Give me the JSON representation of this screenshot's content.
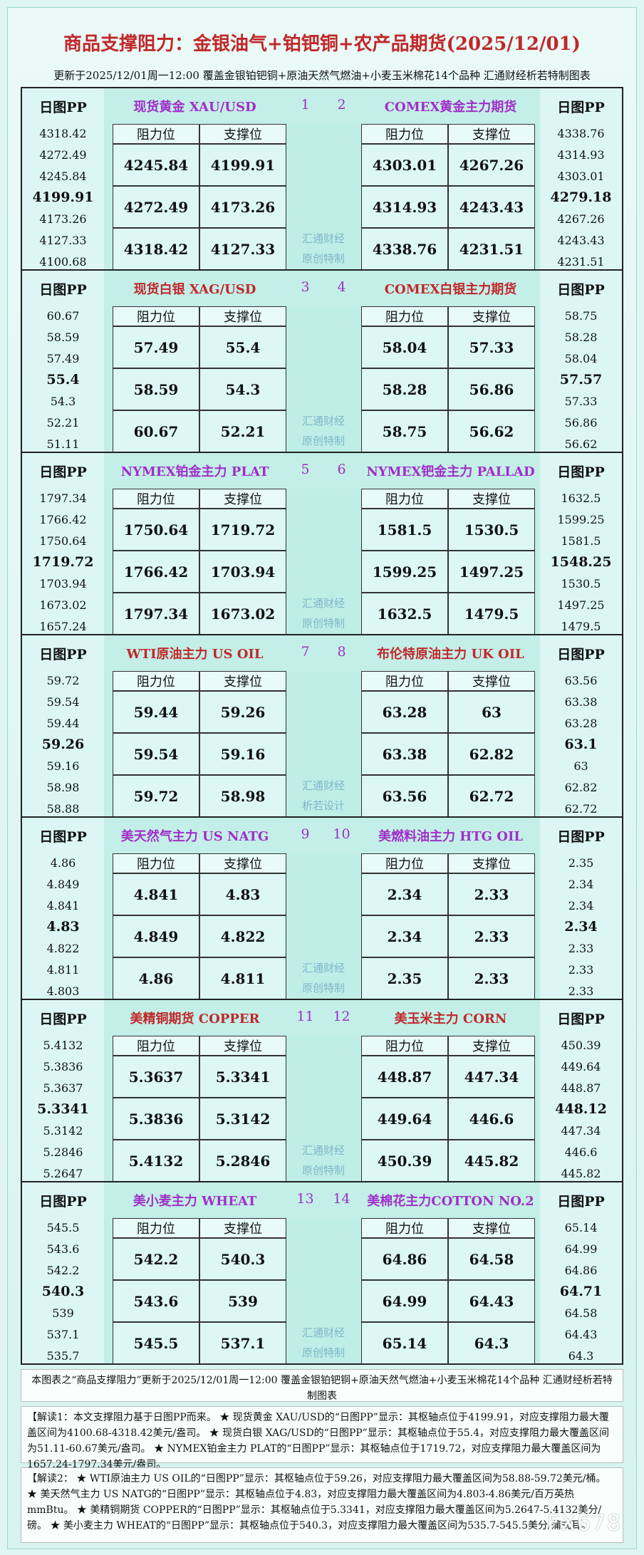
{
  "title": "商品支撑阻力：金银油气+铂钯铜+农产品期货(2025/12/01)",
  "subtitle": "更新于2025/12/01周一12:00 覆盖金银铂钯铜+原油天然气燃油+小麦玉米棉花14个品种 汇通财经析若特制图表",
  "pp_label": "日图PP",
  "col_headers": [
    "阻力位",
    "支撑位"
  ],
  "blocks": [
    {
      "numbers": [
        "1",
        "2"
      ],
      "name_color": "#a02fc8",
      "watermark": [
        "汇通财经",
        "原创特制"
      ],
      "left": {
        "name": "现货黄金 XAU/USD",
        "pp": [
          "4318.42",
          "4272.49",
          "4245.84",
          "4199.91",
          "4173.26",
          "4127.33",
          "4100.68"
        ],
        "rows": [
          [
            "4245.84",
            "4199.91"
          ],
          [
            "4272.49",
            "4173.26"
          ],
          [
            "4318.42",
            "4127.33"
          ]
        ]
      },
      "right": {
        "name": "COMEX黄金主力期货",
        "pp": [
          "4338.76",
          "4314.93",
          "4303.01",
          "4279.18",
          "4267.26",
          "4243.43",
          "4231.51"
        ],
        "rows": [
          [
            "4303.01",
            "4267.26"
          ],
          [
            "4314.93",
            "4243.43"
          ],
          [
            "4338.76",
            "4231.51"
          ]
        ]
      }
    },
    {
      "numbers": [
        "3",
        "4"
      ],
      "name_color": "#c0282a",
      "watermark": [
        "汇通财经",
        "原创特制"
      ],
      "left": {
        "name": "现货白银 XAG/USD",
        "pp": [
          "60.67",
          "58.59",
          "57.49",
          "55.4",
          "54.3",
          "52.21",
          "51.11"
        ],
        "rows": [
          [
            "57.49",
            "55.4"
          ],
          [
            "58.59",
            "54.3"
          ],
          [
            "60.67",
            "52.21"
          ]
        ]
      },
      "right": {
        "name": "COMEX白银主力期货",
        "pp": [
          "58.75",
          "58.28",
          "58.04",
          "57.57",
          "57.33",
          "56.86",
          "56.62"
        ],
        "rows": [
          [
            "58.04",
            "57.33"
          ],
          [
            "58.28",
            "56.86"
          ],
          [
            "58.75",
            "56.62"
          ]
        ]
      }
    },
    {
      "numbers": [
        "5",
        "6"
      ],
      "name_color": "#a02fc8",
      "watermark": [
        "汇通财经",
        "原创特制"
      ],
      "left": {
        "name": "NYMEX铂金主力 PLAT",
        "pp": [
          "1797.34",
          "1766.42",
          "1750.64",
          "1719.72",
          "1703.94",
          "1673.02",
          "1657.24"
        ],
        "rows": [
          [
            "1750.64",
            "1719.72"
          ],
          [
            "1766.42",
            "1703.94"
          ],
          [
            "1797.34",
            "1673.02"
          ]
        ]
      },
      "right": {
        "name": "NYMEX钯金主力 PALLAD",
        "pp": [
          "1632.5",
          "1599.25",
          "1581.5",
          "1548.25",
          "1530.5",
          "1497.25",
          "1479.5"
        ],
        "rows": [
          [
            "1581.5",
            "1530.5"
          ],
          [
            "1599.25",
            "1497.25"
          ],
          [
            "1632.5",
            "1479.5"
          ]
        ]
      }
    },
    {
      "numbers": [
        "7",
        "8"
      ],
      "name_color": "#c0282a",
      "watermark": [
        "汇通财经",
        "析若设计"
      ],
      "left": {
        "name": "WTI原油主力 US OIL",
        "pp": [
          "59.72",
          "59.54",
          "59.44",
          "59.26",
          "59.16",
          "58.98",
          "58.88"
        ],
        "rows": [
          [
            "59.44",
            "59.26"
          ],
          [
            "59.54",
            "59.16"
          ],
          [
            "59.72",
            "58.98"
          ]
        ]
      },
      "right": {
        "name": "布伦特原油主力 UK OIL",
        "pp": [
          "63.56",
          "63.38",
          "63.28",
          "63.1",
          "63",
          "62.82",
          "62.72"
        ],
        "rows": [
          [
            "63.28",
            "63"
          ],
          [
            "63.38",
            "62.82"
          ],
          [
            "63.56",
            "62.72"
          ]
        ]
      }
    },
    {
      "numbers": [
        "9",
        "10"
      ],
      "name_color": "#a02fc8",
      "watermark": [
        "汇通财经",
        "原创特制"
      ],
      "left": {
        "name": "美天然气主力 US NATG",
        "pp": [
          "4.86",
          "4.849",
          "4.841",
          "4.83",
          "4.822",
          "4.811",
          "4.803"
        ],
        "rows": [
          [
            "4.841",
            "4.83"
          ],
          [
            "4.849",
            "4.822"
          ],
          [
            "4.86",
            "4.811"
          ]
        ]
      },
      "right": {
        "name": "美燃料油主力 HTG OIL",
        "pp": [
          "2.35",
          "2.34",
          "2.34",
          "2.34",
          "2.33",
          "2.33",
          "2.33"
        ],
        "rows": [
          [
            "2.34",
            "2.33"
          ],
          [
            "2.34",
            "2.33"
          ],
          [
            "2.35",
            "2.33"
          ]
        ]
      }
    },
    {
      "numbers": [
        "11",
        "12"
      ],
      "name_color": "#c0282a",
      "watermark": [
        "汇通财经",
        "原创特制"
      ],
      "left": {
        "name": "美精铜期货 COPPER",
        "pp": [
          "5.4132",
          "5.3836",
          "5.3637",
          "5.3341",
          "5.3142",
          "5.2846",
          "5.2647"
        ],
        "rows": [
          [
            "5.3637",
            "5.3341"
          ],
          [
            "5.3836",
            "5.3142"
          ],
          [
            "5.4132",
            "5.2846"
          ]
        ]
      },
      "right": {
        "name": "美玉米主力 CORN",
        "pp": [
          "450.39",
          "449.64",
          "448.87",
          "448.12",
          "447.34",
          "446.6",
          "445.82"
        ],
        "rows": [
          [
            "448.87",
            "447.34"
          ],
          [
            "449.64",
            "446.6"
          ],
          [
            "450.39",
            "445.82"
          ]
        ]
      }
    },
    {
      "numbers": [
        "13",
        "14"
      ],
      "name_color": "#a02fc8",
      "watermark": [
        "汇通财经",
        "原创特制"
      ],
      "left": {
        "name": "美小麦主力 WHEAT",
        "pp": [
          "545.5",
          "543.6",
          "542.2",
          "540.3",
          "539",
          "537.1",
          "535.7"
        ],
        "rows": [
          [
            "542.2",
            "540.3"
          ],
          [
            "543.6",
            "539"
          ],
          [
            "545.5",
            "537.1"
          ]
        ]
      },
      "right": {
        "name": "美棉花主力COTTON NO.2",
        "pp": [
          "65.14",
          "64.99",
          "64.86",
          "64.71",
          "64.58",
          "64.43",
          "64.3"
        ],
        "rows": [
          [
            "64.86",
            "64.58"
          ],
          [
            "64.99",
            "64.43"
          ],
          [
            "65.14",
            "64.3"
          ]
        ]
      }
    }
  ],
  "footer": {
    "note": "本图表之“商品支撑阻力”更新于2025/12/01周一12:00 覆盖金银铂钯铜+原油天然气燃油+小麦玉米棉花14个品种 汇通财经析若特制图表",
    "explain1": "【解读1：本文支撑阻力基于日图PP而来。 ★ 现货黄金 XAU/USD的“日图PP”显示：其枢轴点位于4199.91，对应支撑阻力最大覆盖区间为4100.68-4318.42美元/盎司。 ★ 现货白银 XAG/USD的“日图PP”显示：其枢轴点位于55.4，对应支撑阻力最大覆盖区间为51.11-60.67美元/盎司。 ★ NYMEX铂金主力 PLAT的“日图PP”显示：其枢轴点位于1719.72，对应支撑阻力最大覆盖区间为1657.24-1797.34美元/盎司。",
    "explain2": "【解读2： ★ WTI原油主力 US OIL的“日图PP”显示：其枢轴点位于59.26，对应支撑阻力最大覆盖区间为58.88-59.72美元/桶。 ★ 美天然气主力 US NATG的“日图PP”显示：其枢轴点位于4.83，对应支撑阻力最大覆盖区间为4.803-4.86美元/百万英热mmBtu。 ★ 美精铜期货 COPPER的“日图PP”显示：其枢轴点位于5.3341，对应支撑阻力最大覆盖区间为5.2647-5.4132美分/磅。 ★ 美小麦主力 WHEAT的“日图PP”显示：其枢轴点位于540.3，对应支撑阻力最大覆盖区间为535.7-545.5美分/蒲式耳。",
    "watermark": "FX678"
  }
}
